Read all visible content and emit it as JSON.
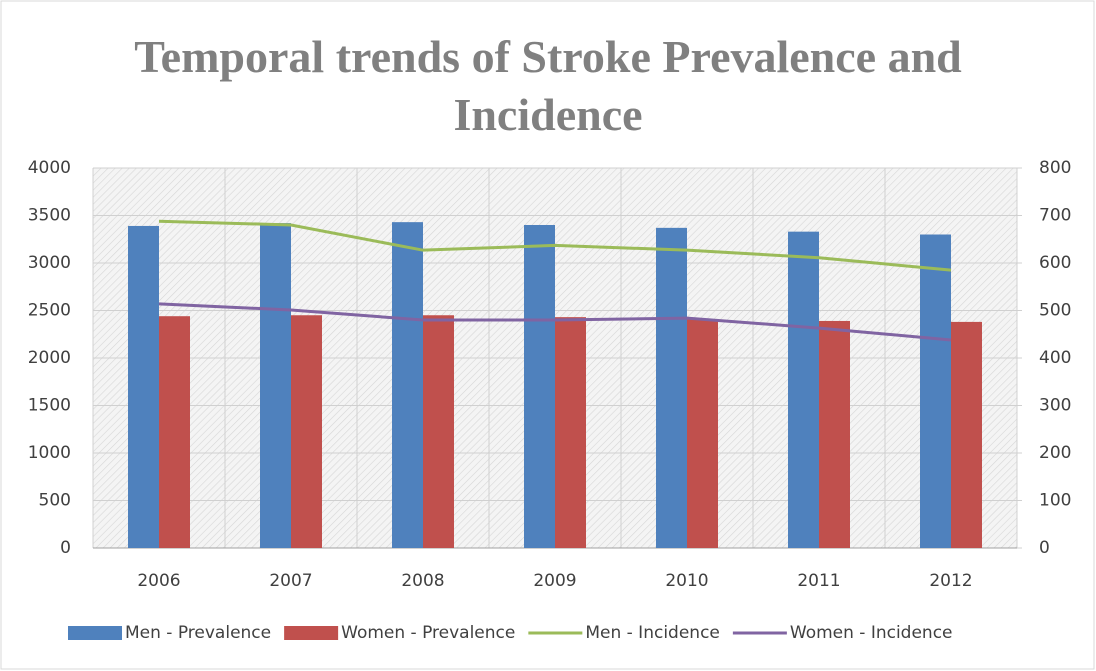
{
  "chart_data": {
    "type": "bar-line",
    "title": "Temporal trends of Stroke Prevalence and Incidence",
    "categories": [
      "2006",
      "2007",
      "2008",
      "2009",
      "2010",
      "2011",
      "2012"
    ],
    "ylim": [
      0,
      4000
    ],
    "yticks": [
      0,
      500,
      1000,
      1500,
      2000,
      2500,
      3000,
      3500,
      4000
    ],
    "y2lim": [
      0,
      800
    ],
    "y2ticks": [
      0,
      100,
      200,
      300,
      400,
      500,
      600,
      700,
      800
    ],
    "grid": true,
    "legend": "bottom",
    "series": [
      {
        "name": "Men - Prevalence",
        "type": "bar",
        "color": "#4f81bd",
        "values": [
          3390,
          3420,
          3430,
          3400,
          3370,
          3330,
          3300
        ]
      },
      {
        "name": "Women - Prevalence",
        "type": "bar",
        "color": "#c0504d",
        "values": [
          2440,
          2450,
          2450,
          2430,
          2410,
          2390,
          2380
        ]
      },
      {
        "name": "Men - Incidence",
        "type": "line",
        "axis": "y2",
        "color": "#9bbb59",
        "values": [
          688,
          680,
          627,
          637,
          627,
          611,
          585
        ]
      },
      {
        "name": "Women - Incidence",
        "type": "line",
        "axis": "y2",
        "color": "#8064a2",
        "values": [
          514,
          501,
          480,
          480,
          484,
          463,
          438
        ]
      }
    ]
  }
}
